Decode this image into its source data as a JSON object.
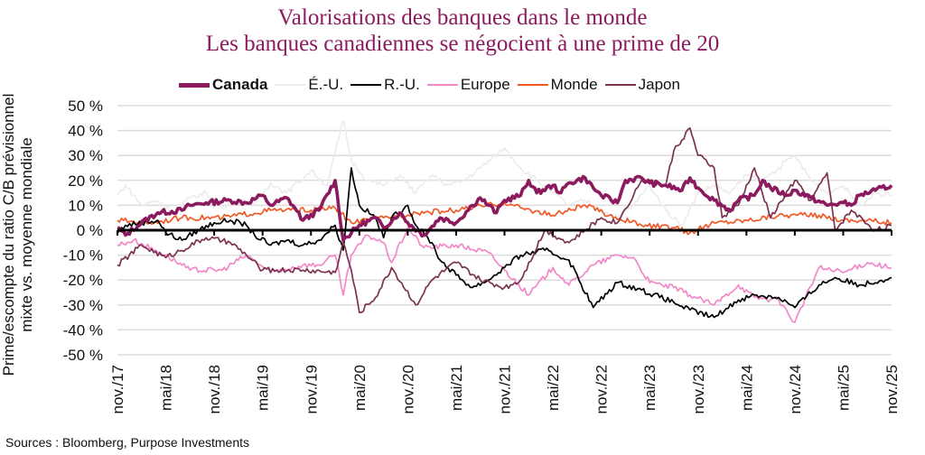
{
  "title": "Valorisations des banques dans le monde",
  "subtitle": "Les banques canadiennes se négocient à une prime de 20",
  "source": "Sources : Bloomberg, Purpose Investments",
  "chart_data": {
    "type": "line",
    "title": "Valorisations des banques dans le monde",
    "subtitle": "Les banques canadiennes se négocient à une prime de 20",
    "ylabel_lines": [
      "Prime/escompte du ratio C/B prévisionnel",
      "mixte vs. moyenne mondiale"
    ],
    "xlabel": "",
    "ylim": [
      -50,
      50
    ],
    "yticks": [
      50,
      40,
      30,
      20,
      10,
      0,
      -10,
      -20,
      -30,
      -40,
      -50
    ],
    "ytick_labels": [
      "50 %",
      "40 %",
      "30 %",
      "20 %",
      "10 %",
      "0 %",
      "-10 %",
      "-20 %",
      "-30 %",
      "-40 %",
      "-50 %"
    ],
    "xlim": [
      "2017-11",
      "2025-11"
    ],
    "xticks": [
      "2017-11",
      "2018-05",
      "2018-11",
      "2019-05",
      "2019-11",
      "2020-05",
      "2020-11",
      "2021-05",
      "2021-11",
      "2022-05",
      "2022-11",
      "2023-05",
      "2023-11",
      "2024-05",
      "2024-11",
      "2025-05",
      "2025-11"
    ],
    "xtick_labels": [
      "nov./17",
      "mai/18",
      "nov./18",
      "mai/19",
      "nov./19",
      "mai/20",
      "nov./20",
      "mai/21",
      "nov./21",
      "mai/22",
      "nov./22",
      "mai/23",
      "nov./23",
      "mai/24",
      "nov./24",
      "mai/25",
      "nov./25"
    ],
    "grid": "horizontal",
    "legend_position": "top",
    "series": [
      {
        "name": "Canada",
        "color": "#8b1a5e",
        "points": [
          [
            "2017-11",
            1
          ],
          [
            "2017-12",
            -2
          ],
          [
            "2018-02",
            3
          ],
          [
            "2018-04",
            7
          ],
          [
            "2018-07",
            8
          ],
          [
            "2018-08",
            10
          ],
          [
            "2018-10",
            11
          ],
          [
            "2019-01",
            12
          ],
          [
            "2019-03",
            11
          ],
          [
            "2019-05",
            14
          ],
          [
            "2019-06",
            10
          ],
          [
            "2019-08",
            13
          ],
          [
            "2019-09",
            9
          ],
          [
            "2019-10",
            4
          ],
          [
            "2019-12",
            8
          ],
          [
            "2020-02",
            20
          ],
          [
            "2020-03",
            -4
          ],
          [
            "2020-05",
            2
          ],
          [
            "2020-07",
            5
          ],
          [
            "2020-08",
            1
          ],
          [
            "2020-10",
            7
          ],
          [
            "2020-11",
            3
          ],
          [
            "2021-01",
            -2
          ],
          [
            "2021-03",
            5
          ],
          [
            "2021-05",
            3
          ],
          [
            "2021-07",
            10
          ],
          [
            "2021-08",
            13
          ],
          [
            "2021-09",
            10
          ],
          [
            "2021-10",
            7
          ],
          [
            "2021-11",
            12
          ],
          [
            "2022-01",
            14
          ],
          [
            "2022-02",
            20
          ],
          [
            "2022-03",
            15
          ],
          [
            "2022-05",
            18
          ],
          [
            "2022-06",
            15
          ],
          [
            "2022-07",
            19
          ],
          [
            "2022-09",
            21
          ],
          [
            "2022-10",
            17
          ],
          [
            "2022-11",
            14
          ],
          [
            "2023-01",
            11
          ],
          [
            "2023-02",
            20
          ],
          [
            "2023-04",
            21
          ],
          [
            "2023-05",
            19
          ],
          [
            "2023-07",
            18
          ],
          [
            "2023-09",
            16
          ],
          [
            "2023-10",
            21
          ],
          [
            "2023-11",
            17
          ],
          [
            "2024-01",
            12
          ],
          [
            "2024-03",
            8
          ],
          [
            "2024-04",
            12
          ],
          [
            "2024-06",
            14
          ],
          [
            "2024-07",
            20
          ],
          [
            "2024-08",
            17
          ],
          [
            "2024-10",
            14
          ],
          [
            "2024-11",
            16
          ],
          [
            "2025-01",
            13
          ],
          [
            "2025-03",
            10
          ],
          [
            "2025-05",
            11
          ],
          [
            "2025-06",
            10
          ],
          [
            "2025-07",
            14
          ],
          [
            "2025-09",
            16
          ],
          [
            "2025-11",
            18
          ]
        ]
      },
      {
        "name": "É.-U.",
        "color": "#ececec",
        "points": [
          [
            "2017-11",
            14
          ],
          [
            "2017-12",
            18
          ],
          [
            "2018-02",
            10
          ],
          [
            "2018-04",
            12
          ],
          [
            "2018-06",
            7
          ],
          [
            "2018-08",
            13
          ],
          [
            "2018-10",
            15
          ],
          [
            "2018-12",
            9
          ],
          [
            "2019-02",
            12
          ],
          [
            "2019-04",
            10
          ],
          [
            "2019-06",
            19
          ],
          [
            "2019-08",
            15
          ],
          [
            "2019-11",
            24
          ],
          [
            "2020-01",
            18
          ],
          [
            "2020-03",
            44
          ],
          [
            "2020-04",
            28
          ],
          [
            "2020-06",
            20
          ],
          [
            "2020-08",
            18
          ],
          [
            "2020-10",
            22
          ],
          [
            "2020-12",
            15
          ],
          [
            "2021-02",
            22
          ],
          [
            "2021-04",
            18
          ],
          [
            "2021-06",
            20
          ],
          [
            "2021-08",
            25
          ],
          [
            "2021-11",
            33
          ],
          [
            "2022-01",
            25
          ],
          [
            "2022-03",
            20
          ],
          [
            "2022-05",
            15
          ],
          [
            "2022-07",
            10
          ],
          [
            "2022-09",
            12
          ],
          [
            "2022-11",
            8
          ],
          [
            "2023-01",
            5
          ],
          [
            "2023-03",
            10
          ],
          [
            "2023-05",
            18
          ],
          [
            "2023-07",
            8
          ],
          [
            "2023-09",
            2
          ],
          [
            "2023-11",
            15
          ],
          [
            "2024-01",
            18
          ],
          [
            "2024-03",
            15
          ],
          [
            "2024-05",
            22
          ],
          [
            "2024-07",
            20
          ],
          [
            "2024-09",
            25
          ],
          [
            "2024-11",
            30
          ],
          [
            "2025-01",
            20
          ],
          [
            "2025-03",
            15
          ],
          [
            "2025-05",
            18
          ],
          [
            "2025-07",
            10
          ],
          [
            "2025-09",
            15
          ],
          [
            "2025-11",
            14
          ]
        ]
      },
      {
        "name": "R.-U.",
        "color": "#000000",
        "points": [
          [
            "2017-11",
            -1
          ],
          [
            "2017-12",
            2
          ],
          [
            "2018-02",
            3
          ],
          [
            "2018-04",
            4
          ],
          [
            "2018-05",
            -1
          ],
          [
            "2018-07",
            -4
          ],
          [
            "2018-09",
            0
          ],
          [
            "2018-11",
            3
          ],
          [
            "2019-01",
            4
          ],
          [
            "2019-03",
            2
          ],
          [
            "2019-04",
            -2
          ],
          [
            "2019-06",
            -6
          ],
          [
            "2019-08",
            -4
          ],
          [
            "2019-10",
            -6
          ],
          [
            "2019-12",
            -4
          ],
          [
            "2020-02",
            2
          ],
          [
            "2020-03",
            -8
          ],
          [
            "2020-04",
            25
          ],
          [
            "2020-05",
            10
          ],
          [
            "2020-07",
            5
          ],
          [
            "2020-08",
            -3
          ],
          [
            "2020-09",
            5
          ],
          [
            "2020-11",
            10
          ],
          [
            "2020-12",
            2
          ],
          [
            "2021-02",
            -5
          ],
          [
            "2021-03",
            -12
          ],
          [
            "2021-05",
            -18
          ],
          [
            "2021-07",
            -23
          ],
          [
            "2021-09",
            -20
          ],
          [
            "2021-11",
            -15
          ],
          [
            "2022-01",
            -10
          ],
          [
            "2022-04",
            -8
          ],
          [
            "2022-07",
            -12
          ],
          [
            "2022-10",
            -31
          ],
          [
            "2023-01",
            -21
          ],
          [
            "2023-04",
            -24
          ],
          [
            "2023-08",
            -29
          ],
          [
            "2023-10",
            -32
          ],
          [
            "2024-01",
            -35
          ],
          [
            "2024-04",
            -28
          ],
          [
            "2024-06",
            -26
          ],
          [
            "2024-09",
            -27
          ],
          [
            "2024-11",
            -31
          ],
          [
            "2025-02",
            -22
          ],
          [
            "2025-04",
            -19
          ],
          [
            "2025-07",
            -22
          ],
          [
            "2025-11",
            -19
          ]
        ]
      },
      {
        "name": "Europe",
        "color": "#f288c8",
        "points": [
          [
            "2017-11",
            -6
          ],
          [
            "2018-01",
            -4
          ],
          [
            "2018-05",
            -10
          ],
          [
            "2018-08",
            -16
          ],
          [
            "2018-12",
            -16
          ],
          [
            "2019-03",
            -10
          ],
          [
            "2019-06",
            -17
          ],
          [
            "2019-10",
            -14
          ],
          [
            "2019-12",
            -14
          ],
          [
            "2020-02",
            -10
          ],
          [
            "2020-03",
            -26
          ],
          [
            "2020-04",
            -10
          ],
          [
            "2020-06",
            -2
          ],
          [
            "2020-08",
            -5
          ],
          [
            "2020-09",
            -13
          ],
          [
            "2020-11",
            1
          ],
          [
            "2021-01",
            -7
          ],
          [
            "2021-05",
            -6
          ],
          [
            "2021-09",
            -9
          ],
          [
            "2021-11",
            -16
          ],
          [
            "2022-02",
            -26
          ],
          [
            "2022-05",
            -15
          ],
          [
            "2022-07",
            -22
          ],
          [
            "2022-10",
            -14
          ],
          [
            "2023-01",
            -10
          ],
          [
            "2023-03",
            -11
          ],
          [
            "2023-05",
            -21
          ],
          [
            "2023-08",
            -23
          ],
          [
            "2023-10",
            -26
          ],
          [
            "2024-01",
            -30
          ],
          [
            "2024-04",
            -22
          ],
          [
            "2024-06",
            -27
          ],
          [
            "2024-09",
            -28
          ],
          [
            "2024-11",
            -37
          ],
          [
            "2025-02",
            -15
          ],
          [
            "2025-05",
            -17
          ],
          [
            "2025-08",
            -13
          ],
          [
            "2025-11",
            -15
          ]
        ]
      },
      {
        "name": "Monde",
        "color": "#f05a28",
        "points": [
          [
            "2017-11",
            4
          ],
          [
            "2018-03",
            3
          ],
          [
            "2018-07",
            5
          ],
          [
            "2018-12",
            5
          ],
          [
            "2019-06",
            8
          ],
          [
            "2019-11",
            8
          ],
          [
            "2020-02",
            9
          ],
          [
            "2020-04",
            3
          ],
          [
            "2020-08",
            5
          ],
          [
            "2020-12",
            7
          ],
          [
            "2021-05",
            8
          ],
          [
            "2021-11",
            11
          ],
          [
            "2022-01",
            9
          ],
          [
            "2022-05",
            6
          ],
          [
            "2022-09",
            10
          ],
          [
            "2022-12",
            6
          ],
          [
            "2023-04",
            2
          ],
          [
            "2023-08",
            1
          ],
          [
            "2023-10",
            -1
          ],
          [
            "2024-01",
            3
          ],
          [
            "2024-05",
            4
          ],
          [
            "2024-09",
            6
          ],
          [
            "2025-02",
            6
          ],
          [
            "2025-05",
            4
          ],
          [
            "2025-08",
            4
          ],
          [
            "2025-11",
            3
          ]
        ]
      },
      {
        "name": "Japon",
        "color": "#7a3350",
        "points": [
          [
            "2017-11",
            -14
          ],
          [
            "2018-02",
            -6
          ],
          [
            "2018-05",
            -11
          ],
          [
            "2018-10",
            -3
          ],
          [
            "2019-01",
            -5
          ],
          [
            "2019-03",
            -10
          ],
          [
            "2019-05",
            -16
          ],
          [
            "2019-10",
            -16
          ],
          [
            "2020-02",
            -17
          ],
          [
            "2020-03",
            -5
          ],
          [
            "2020-04",
            -16
          ],
          [
            "2020-05",
            -33
          ],
          [
            "2020-07",
            -27
          ],
          [
            "2020-09",
            -15
          ],
          [
            "2020-12",
            -30
          ],
          [
            "2021-02",
            -20
          ],
          [
            "2021-05",
            -13
          ],
          [
            "2021-08",
            -20
          ],
          [
            "2021-11",
            -23
          ],
          [
            "2022-01",
            -20
          ],
          [
            "2022-04",
            0
          ],
          [
            "2022-07",
            -5
          ],
          [
            "2022-09",
            0
          ],
          [
            "2022-11",
            5
          ],
          [
            "2023-01",
            3
          ],
          [
            "2023-04",
            20
          ],
          [
            "2023-07",
            18
          ],
          [
            "2023-08",
            32
          ],
          [
            "2023-10",
            41
          ],
          [
            "2023-11",
            30
          ],
          [
            "2024-01",
            25
          ],
          [
            "2024-02",
            5
          ],
          [
            "2024-04",
            10
          ],
          [
            "2024-06",
            25
          ],
          [
            "2024-08",
            5
          ],
          [
            "2024-11",
            20
          ],
          [
            "2025-01",
            12
          ],
          [
            "2025-03",
            23
          ],
          [
            "2025-04",
            0
          ],
          [
            "2025-06",
            8
          ],
          [
            "2025-09",
            0
          ],
          [
            "2025-11",
            2
          ]
        ]
      }
    ]
  }
}
